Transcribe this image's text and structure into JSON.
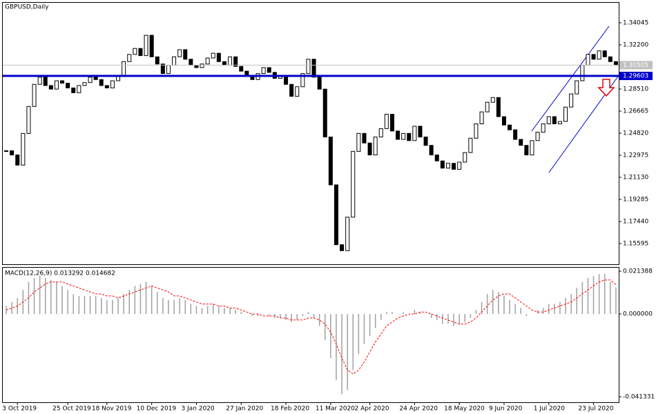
{
  "chart_data": {
    "type": "candlestick",
    "title": "GBPUSD,Daily",
    "categories": [
      null,
      null,
      "3 Oct 2019",
      null,
      null,
      null,
      null,
      null,
      null,
      null,
      null,
      "25 Oct 2019",
      null,
      null,
      null,
      null,
      null,
      null,
      "18 Nov 2019",
      null,
      null,
      null,
      null,
      null,
      null,
      null,
      "10 Dec 2019",
      null,
      null,
      null,
      null,
      null,
      null,
      null,
      "3 Jan 2020",
      null,
      null,
      null,
      null,
      null,
      null,
      null,
      "27 Jan 2020",
      null,
      null,
      null,
      null,
      null,
      null,
      null,
      "18 Feb 2020",
      null,
      null,
      null,
      null,
      null,
      null,
      null,
      "11 Mar 2020",
      null,
      null,
      null,
      null,
      null,
      null,
      "2 Apr 2020",
      null,
      null,
      null,
      null,
      null,
      null,
      null,
      "24 Apr 2020",
      null,
      null,
      null,
      null,
      null,
      null,
      null,
      "18 May 2020",
      null,
      null,
      null,
      null,
      null,
      null,
      null,
      "9 Jun 2020",
      null,
      null,
      null,
      null,
      null,
      null,
      null,
      "1 Jul 2020",
      null,
      null,
      null,
      null,
      null,
      null,
      null,
      "23 Jul 2020",
      null,
      null,
      null,
      null
    ],
    "close": [
      1.2335,
      1.23,
      1.2215,
      1.248,
      1.2705,
      1.289,
      1.295,
      1.288,
      1.285,
      1.292,
      1.29,
      1.286,
      1.282,
      1.288,
      1.2905,
      1.295,
      1.293,
      1.288,
      1.286,
      1.292,
      1.296,
      1.308,
      1.314,
      1.319,
      1.313,
      1.33,
      1.312,
      1.306,
      1.298,
      1.305,
      1.312,
      1.318,
      1.31,
      1.305,
      1.303,
      1.306,
      1.311,
      1.315,
      1.308,
      1.305,
      1.312,
      1.304,
      1.3,
      1.296,
      1.293,
      1.298,
      1.303,
      1.299,
      1.294,
      1.296,
      1.289,
      1.279,
      1.287,
      1.298,
      1.31,
      1.295,
      1.285,
      1.245,
      1.205,
      1.155,
      1.15,
      1.178,
      1.233,
      1.248,
      1.24,
      1.23,
      1.245,
      1.252,
      1.264,
      1.25,
      1.243,
      1.248,
      1.242,
      1.254,
      1.245,
      1.238,
      1.23,
      1.225,
      1.219,
      1.223,
      1.218,
      1.224,
      1.232,
      1.244,
      1.256,
      1.266,
      1.274,
      1.278,
      1.262,
      1.255,
      1.251,
      1.243,
      1.238,
      1.23,
      1.242,
      1.249,
      1.256,
      1.262,
      1.256,
      1.258,
      1.27,
      1.281,
      1.292,
      1.305,
      1.314,
      1.31,
      1.317,
      1.312,
      1.308,
      1.305
    ],
    "ylim": [
      1.13865,
      1.35775
    ],
    "yticks": [
      {
        "value": 1.34045,
        "label": "1.34045"
      },
      {
        "value": 1.322,
        "label": "1.32200"
      },
      {
        "value": 1.2851,
        "label": "1.28510"
      },
      {
        "value": 1.26665,
        "label": "1.26665"
      },
      {
        "value": 1.2482,
        "label": "1.24820"
      },
      {
        "value": 1.22975,
        "label": "1.22975"
      },
      {
        "value": 1.2113,
        "label": "1.21130"
      },
      {
        "value": 1.19285,
        "label": "1.19285"
      },
      {
        "value": 1.1744,
        "label": "1.17440"
      },
      {
        "value": 1.15595,
        "label": "1.15595"
      }
    ],
    "levels": [
      {
        "value": 1.30505,
        "label": "1.30505",
        "color": "#c0c0c0"
      },
      {
        "value": 1.29603,
        "label": "1.29603",
        "color": "#0000cc"
      }
    ],
    "macd": {
      "label": "MACD(12,26,9) 0.013292 0.014682",
      "ylim": [
        -0.041331,
        0.021388
      ],
      "yticks": [
        {
          "value": 0.021388,
          "label": "0.021388"
        },
        {
          "value": 0,
          "label": "0.000000"
        },
        {
          "value": -0.041331,
          "label": "-0.041331"
        }
      ],
      "values": [
        0.004,
        0.006,
        0.008,
        0.012,
        0.016,
        0.018,
        0.019,
        0.018,
        0.017,
        0.016,
        0.014,
        0.012,
        0.01,
        0.009,
        0.009,
        0.009,
        0.009,
        0.008,
        0.007,
        0.007,
        0.008,
        0.01,
        0.012,
        0.014,
        0.015,
        0.016,
        0.014,
        0.011,
        0.008,
        0.007,
        0.007,
        0.008,
        0.007,
        0.005,
        0.004,
        0.003,
        0.004,
        0.005,
        0.004,
        0.003,
        0.003,
        0.002,
        0.001,
        0.0,
        -0.001,
        -0.001,
        0.0,
        -0.001,
        -0.002,
        -0.002,
        -0.003,
        -0.004,
        -0.003,
        -0.001,
        0.001,
        -0.002,
        -0.006,
        -0.013,
        -0.022,
        -0.033,
        -0.04,
        -0.038,
        -0.028,
        -0.02,
        -0.015,
        -0.011,
        -0.007,
        -0.003,
        0.001,
        0.001,
        0.0,
        0.001,
        0.0,
        0.002,
        0.001,
        0.0,
        -0.002,
        -0.003,
        -0.005,
        -0.005,
        -0.006,
        -0.005,
        -0.004,
        -0.002,
        0.002,
        0.006,
        0.01,
        0.012,
        0.011,
        0.009,
        0.007,
        0.005,
        0.003,
        -0.001,
        0.0,
        0.002,
        0.003,
        0.005,
        0.005,
        0.006,
        0.008,
        0.01,
        0.013,
        0.016,
        0.018,
        0.019,
        0.02,
        0.02,
        0.016,
        0.013292
      ],
      "signal": [
        0.002,
        0.003,
        0.004,
        0.006,
        0.008,
        0.011,
        0.013,
        0.015,
        0.016,
        0.016,
        0.016,
        0.015,
        0.014,
        0.013,
        0.012,
        0.011,
        0.01,
        0.01,
        0.009,
        0.009,
        0.008,
        0.009,
        0.01,
        0.011,
        0.012,
        0.013,
        0.014,
        0.013,
        0.012,
        0.011,
        0.009,
        0.009,
        0.008,
        0.007,
        0.006,
        0.005,
        0.005,
        0.005,
        0.004,
        0.004,
        0.003,
        0.003,
        0.002,
        0.001,
        0.0,
        0.0,
        -0.001,
        -0.001,
        -0.001,
        -0.002,
        -0.002,
        -0.003,
        -0.003,
        -0.003,
        -0.002,
        -0.002,
        -0.003,
        -0.005,
        -0.009,
        -0.015,
        -0.022,
        -0.028,
        -0.03,
        -0.028,
        -0.024,
        -0.019,
        -0.014,
        -0.01,
        -0.006,
        -0.004,
        -0.002,
        -0.001,
        0.0,
        0.0,
        0.001,
        0.001,
        0.0,
        -0.001,
        -0.002,
        -0.003,
        -0.004,
        -0.005,
        -0.005,
        -0.004,
        -0.002,
        0.001,
        0.004,
        0.007,
        0.009,
        0.01,
        0.01,
        0.008,
        0.006,
        0.004,
        0.002,
        0.001,
        0.001,
        0.002,
        0.003,
        0.004,
        0.005,
        0.006,
        0.008,
        0.01,
        0.012,
        0.014,
        0.016,
        0.017,
        0.017,
        0.014682
      ],
      "color": "#a0a0a0",
      "signal_color": "#ff0000"
    }
  }
}
